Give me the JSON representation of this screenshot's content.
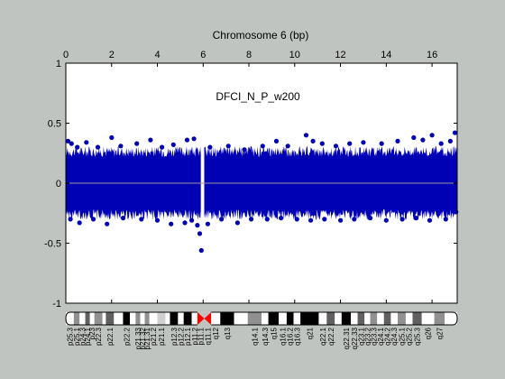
{
  "chart_data": {
    "type": "scatter",
    "title": "Chromosome 6 (bp)",
    "annotation": "DFCI_N_P_w200",
    "x_tick_labels": [
      "0",
      "2",
      "4",
      "6",
      "8",
      "10",
      "12",
      "14",
      "16"
    ],
    "y_tick_labels": [
      "1",
      "0.5",
      "0",
      "-0.5",
      "-1"
    ],
    "x_ticks": [
      0,
      2,
      4,
      6,
      8,
      10,
      12,
      14,
      16
    ],
    "y_ticks": [
      1,
      0.5,
      0,
      -0.5,
      -1
    ],
    "xlim": [
      0,
      17.1
    ],
    "ylim": [
      -1,
      1
    ],
    "grid": false,
    "zero_line": true,
    "gap_region": [
      5.9,
      6.05
    ],
    "dense_band": {
      "start": 0,
      "end": 17.1,
      "upper_typical": 0.25,
      "lower_typical": -0.25,
      "upper_extreme": 0.42,
      "lower_extreme": -0.4
    },
    "series": [
      {
        "color": "#0000b4",
        "outliers": [
          [
            0.1,
            0.35
          ],
          [
            0.25,
            0.33
          ],
          [
            0.5,
            0.3
          ],
          [
            0.9,
            0.34
          ],
          [
            1.4,
            0.3
          ],
          [
            2.0,
            0.38
          ],
          [
            2.4,
            0.31
          ],
          [
            3.1,
            0.33
          ],
          [
            3.7,
            0.36
          ],
          [
            4.2,
            0.3
          ],
          [
            4.7,
            0.32
          ],
          [
            5.3,
            0.36
          ],
          [
            5.6,
            0.37
          ],
          [
            6.3,
            0.3
          ],
          [
            7.1,
            0.31
          ],
          [
            7.8,
            0.28
          ],
          [
            8.6,
            0.31
          ],
          [
            9.2,
            0.35
          ],
          [
            9.7,
            0.31
          ],
          [
            10.5,
            0.4
          ],
          [
            10.8,
            0.35
          ],
          [
            11.2,
            0.33
          ],
          [
            11.8,
            0.31
          ],
          [
            12.4,
            0.33
          ],
          [
            13.0,
            0.34
          ],
          [
            13.8,
            0.33
          ],
          [
            14.5,
            0.35
          ],
          [
            15.2,
            0.38
          ],
          [
            15.6,
            0.36
          ],
          [
            16.0,
            0.4
          ],
          [
            16.4,
            0.33
          ],
          [
            16.8,
            0.35
          ],
          [
            17.0,
            0.42
          ],
          [
            0.2,
            -0.3
          ],
          [
            0.6,
            -0.33
          ],
          [
            1.2,
            -0.3
          ],
          [
            1.8,
            -0.34
          ],
          [
            2.5,
            -0.29
          ],
          [
            3.3,
            -0.3
          ],
          [
            4.0,
            -0.31
          ],
          [
            4.6,
            -0.34
          ],
          [
            5.2,
            -0.33
          ],
          [
            5.5,
            -0.31
          ],
          [
            5.75,
            -0.35
          ],
          [
            5.85,
            -0.42
          ],
          [
            5.92,
            -0.56
          ],
          [
            6.2,
            -0.34
          ],
          [
            6.8,
            -0.3
          ],
          [
            7.5,
            -0.33
          ],
          [
            8.1,
            -0.3
          ],
          [
            8.8,
            -0.3
          ],
          [
            9.4,
            -0.29
          ],
          [
            10.1,
            -0.3
          ],
          [
            10.7,
            -0.31
          ],
          [
            11.3,
            -0.3
          ],
          [
            12.0,
            -0.31
          ],
          [
            12.6,
            -0.3
          ],
          [
            13.3,
            -0.29
          ],
          [
            14.0,
            -0.31
          ],
          [
            14.7,
            -0.3
          ],
          [
            15.3,
            -0.29
          ],
          [
            15.9,
            -0.31
          ],
          [
            16.6,
            -0.3
          ],
          [
            17.05,
            -0.24
          ]
        ]
      }
    ],
    "ideogram": {
      "bands": [
        {
          "start": 0.0,
          "end": 0.35,
          "stain": "gneg",
          "label": "p25.3"
        },
        {
          "start": 0.35,
          "end": 0.6,
          "stain": "gpos50",
          "label": "p25.1"
        },
        {
          "start": 0.6,
          "end": 0.85,
          "stain": "gneg",
          "label": "p24.3"
        },
        {
          "start": 0.85,
          "end": 1.05,
          "stain": "gpos75",
          "label": "p24.1"
        },
        {
          "start": 1.05,
          "end": 1.25,
          "stain": "gneg",
          "label": "p23"
        },
        {
          "start": 1.25,
          "end": 1.6,
          "stain": "gpos50",
          "label": "p22.3"
        },
        {
          "start": 1.6,
          "end": 1.75,
          "stain": "gneg",
          "label": ""
        },
        {
          "start": 1.75,
          "end": 2.1,
          "stain": "gpos75",
          "label": "p22.1"
        },
        {
          "start": 2.1,
          "end": 2.5,
          "stain": "gneg",
          "label": ""
        },
        {
          "start": 2.5,
          "end": 2.8,
          "stain": "gpos100",
          "label": "p22.2"
        },
        {
          "start": 2.8,
          "end": 3.05,
          "stain": "gneg",
          "label": ""
        },
        {
          "start": 3.05,
          "end": 3.25,
          "stain": "gpos50",
          "label": "p21.33"
        },
        {
          "start": 3.25,
          "end": 3.45,
          "stain": "gneg",
          "label": "p21.32"
        },
        {
          "start": 3.45,
          "end": 3.65,
          "stain": "gpos50",
          "label": "p21.31"
        },
        {
          "start": 3.65,
          "end": 4.0,
          "stain": "gneg",
          "label": "p21.2"
        },
        {
          "start": 4.0,
          "end": 4.35,
          "stain": "gpos25",
          "label": "p21.1"
        },
        {
          "start": 4.35,
          "end": 4.55,
          "stain": "gneg",
          "label": ""
        },
        {
          "start": 4.55,
          "end": 4.9,
          "stain": "gpos100",
          "label": "p12.3"
        },
        {
          "start": 4.9,
          "end": 5.15,
          "stain": "gneg",
          "label": "p12.2"
        },
        {
          "start": 5.15,
          "end": 5.5,
          "stain": "gpos100",
          "label": "p12.1"
        },
        {
          "start": 5.5,
          "end": 5.75,
          "stain": "gneg",
          "label": "p11.2"
        },
        {
          "start": 5.75,
          "end": 6.05,
          "stain": "acen",
          "label": "p11.1"
        },
        {
          "start": 6.05,
          "end": 6.35,
          "stain": "acen",
          "label": "q11.1"
        },
        {
          "start": 6.35,
          "end": 6.75,
          "stain": "gneg",
          "label": "q12"
        },
        {
          "start": 6.75,
          "end": 7.35,
          "stain": "gpos100",
          "label": "q13"
        },
        {
          "start": 7.35,
          "end": 7.95,
          "stain": "gneg",
          "label": ""
        },
        {
          "start": 7.95,
          "end": 8.55,
          "stain": "gpos50",
          "label": "q14.1"
        },
        {
          "start": 8.55,
          "end": 8.85,
          "stain": "gneg",
          "label": "q14.3"
        },
        {
          "start": 8.85,
          "end": 9.3,
          "stain": "gpos100",
          "label": "q15"
        },
        {
          "start": 9.3,
          "end": 9.65,
          "stain": "gneg",
          "label": "q16.1"
        },
        {
          "start": 9.65,
          "end": 9.95,
          "stain": "gpos100",
          "label": "q16.2"
        },
        {
          "start": 9.95,
          "end": 10.25,
          "stain": "gneg",
          "label": "q16.3"
        },
        {
          "start": 10.25,
          "end": 11.05,
          "stain": "gpos100",
          "label": "q21"
        },
        {
          "start": 11.05,
          "end": 11.4,
          "stain": "gneg",
          "label": "q22.1"
        },
        {
          "start": 11.4,
          "end": 11.75,
          "stain": "gpos75",
          "label": "q22.2"
        },
        {
          "start": 11.75,
          "end": 12.05,
          "stain": "gneg",
          "label": ""
        },
        {
          "start": 12.05,
          "end": 12.45,
          "stain": "gpos100",
          "label": "q22.31"
        },
        {
          "start": 12.45,
          "end": 12.75,
          "stain": "gneg",
          "label": "q22.33"
        },
        {
          "start": 12.75,
          "end": 13.05,
          "stain": "gpos75",
          "label": "q23.1"
        },
        {
          "start": 13.05,
          "end": 13.3,
          "stain": "gneg",
          "label": "q23.2"
        },
        {
          "start": 13.3,
          "end": 13.6,
          "stain": "gpos50",
          "label": "q23.3"
        },
        {
          "start": 13.6,
          "end": 13.9,
          "stain": "gneg",
          "label": "q24.1"
        },
        {
          "start": 13.9,
          "end": 14.2,
          "stain": "gpos75",
          "label": "q24.2"
        },
        {
          "start": 14.2,
          "end": 14.5,
          "stain": "gneg",
          "label": "q24.3"
        },
        {
          "start": 14.5,
          "end": 14.85,
          "stain": "gpos50",
          "label": "q25.1"
        },
        {
          "start": 14.85,
          "end": 15.15,
          "stain": "gneg",
          "label": "q25.2"
        },
        {
          "start": 15.15,
          "end": 15.55,
          "stain": "gpos75",
          "label": "q25.3"
        },
        {
          "start": 15.55,
          "end": 16.1,
          "stain": "gneg",
          "label": "q26"
        },
        {
          "start": 16.1,
          "end": 16.55,
          "stain": "gpos50",
          "label": "q27"
        },
        {
          "start": 16.55,
          "end": 17.1,
          "stain": "gneg",
          "label": ""
        }
      ]
    }
  },
  "colors": {
    "background": "#c0c4c0",
    "plot_area": "#ffffff",
    "points": "#0000b4",
    "zero_line": "#9a9a9a",
    "centromere": "#ff0000"
  }
}
